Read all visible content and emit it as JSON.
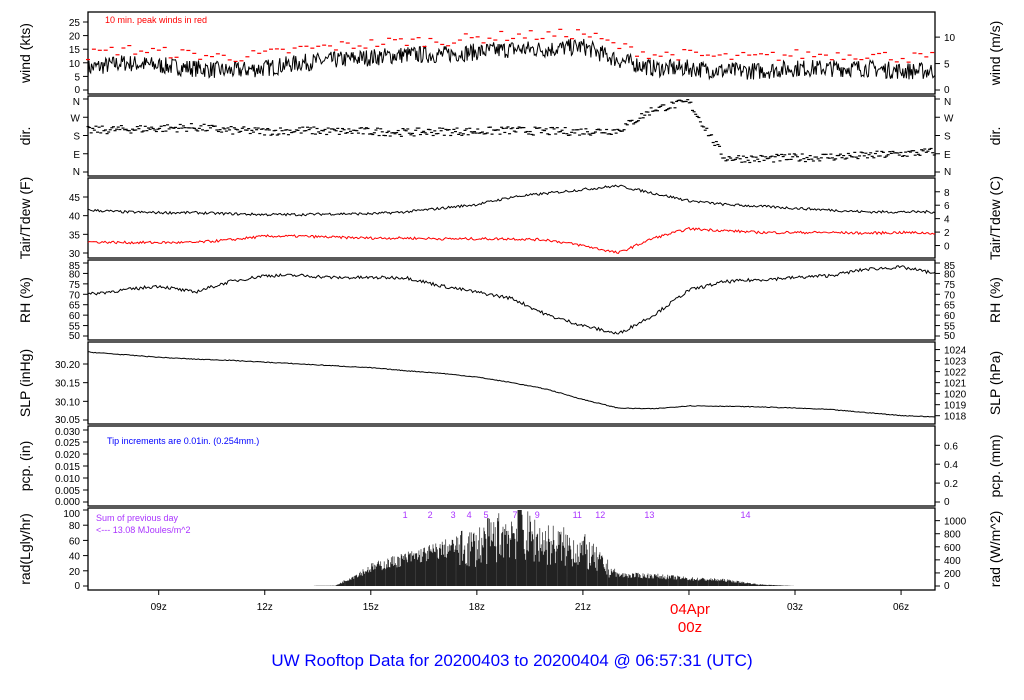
{
  "title": "UW Rooftop Data for 20200403  to  20200404 @ 06:57:31  (UTC)",
  "date_marker": {
    "day": "04Apr",
    "hour": "00z"
  },
  "colors": {
    "title": "#0000ff",
    "peak": "#ff0000",
    "dew": "#ff0000",
    "note_pcp": "#0000ff",
    "rad_labels": "#aa33ff",
    "line": "#000000"
  },
  "chart_data": {
    "type": "line",
    "x_range_hours_utc": [
      7.0,
      30.96
    ],
    "x_ticks": [
      {
        "hour": 9,
        "label": "09z"
      },
      {
        "hour": 12,
        "label": "12z"
      },
      {
        "hour": 15,
        "label": "15z"
      },
      {
        "hour": 18,
        "label": "18z"
      },
      {
        "hour": 21,
        "label": "21z"
      },
      {
        "hour": 27,
        "label": "03z"
      },
      {
        "hour": 30,
        "label": "06z"
      }
    ],
    "hourly_x": [
      7,
      8,
      9,
      10,
      11,
      12,
      13,
      14,
      15,
      16,
      17,
      18,
      19,
      20,
      21,
      22,
      23,
      24,
      25,
      26,
      27,
      28,
      29,
      30,
      31
    ],
    "panels": [
      {
        "id": "wind",
        "ylabel": "wind (kts)",
        "ylabel_right": "wind (m/s)",
        "yticks": [
          0,
          5,
          10,
          15,
          20,
          25
        ],
        "yticks_right": [
          0,
          5,
          10
        ],
        "note": "10 min. peak winds in red",
        "series": [
          {
            "name": "wind",
            "values": [
              8,
              10,
              9,
              8,
              7,
              8,
              10,
              11,
              12,
              13,
              13,
              14,
              15,
              15,
              16,
              11,
              8,
              8,
              7,
              7,
              8,
              8,
              8,
              7,
              7
            ]
          }
        ]
      },
      {
        "id": "dir",
        "ylabel": "dir.",
        "ylabel_right": "dir.",
        "yticks": [
          "N",
          "E",
          "S",
          "W",
          "N"
        ],
        "yticks_right": [
          "N",
          "E",
          "S",
          "W",
          "N"
        ],
        "series": [
          {
            "name": "direction_deg",
            "values": [
              205,
              210,
              215,
              220,
              205,
              200,
              205,
              200,
              200,
              195,
              200,
              200,
              205,
              200,
              200,
              205,
              310,
              345,
              70,
              65,
              70,
              75,
              80,
              90,
              100
            ]
          }
        ]
      },
      {
        "id": "tair",
        "ylabel": "Tair/Tdew (F)",
        "ylabel_right": "Tair/Tdew (C)",
        "yticks": [
          30,
          35,
          40,
          45
        ],
        "yticks_right": [
          0,
          2,
          4,
          6,
          8
        ],
        "series": [
          {
            "name": "Tair",
            "values": [
              41.5,
              41,
              40.8,
              40.8,
              40.5,
              40.3,
              40.3,
              40.5,
              40.5,
              41,
              42,
              43,
              45,
              46,
              47,
              48,
              46,
              44,
              43,
              42.5,
              42,
              41.5,
              41,
              41,
              41
            ]
          },
          {
            "name": "Tdew",
            "values": [
              33,
              32.8,
              32.8,
              32.8,
              33.5,
              34.5,
              34.5,
              34.2,
              34,
              34,
              33.8,
              33.8,
              33.8,
              33.5,
              32,
              30,
              34,
              36.5,
              36,
              35.5,
              35.5,
              35.5,
              35.3,
              35.5,
              35.3
            ]
          }
        ]
      },
      {
        "id": "rh",
        "ylabel": "RH (%)",
        "ylabel_right": "RH (%)",
        "yticks": [
          50,
          55,
          60,
          65,
          70,
          75,
          80,
          85
        ],
        "yticks_right": [
          50,
          55,
          60,
          65,
          70,
          75,
          80,
          85
        ],
        "series": [
          {
            "name": "RH",
            "values": [
              70,
              72,
              74,
              71,
              76,
              79,
              79,
              78,
              78,
              78,
              74,
              71,
              68,
              60,
              55,
              51,
              60,
              72,
              76,
              77,
              78,
              79,
              82,
              83,
              80
            ]
          }
        ]
      },
      {
        "id": "slp",
        "ylabel": "SLP (inHg)",
        "ylabel_right": "SLP (hPa)",
        "yticks": [
          30.05,
          30.1,
          30.15,
          30.2
        ],
        "yticks_right": [
          1018,
          1019,
          1020,
          1021,
          1022,
          1023,
          1024
        ],
        "series": [
          {
            "name": "SLP",
            "values": [
              30.232,
              30.225,
              30.218,
              30.213,
              30.21,
              30.205,
              30.2,
              30.195,
              30.19,
              30.182,
              30.175,
              30.165,
              30.15,
              30.132,
              30.105,
              30.082,
              30.08,
              30.088,
              30.087,
              30.085,
              30.082,
              30.078,
              30.07,
              30.062,
              30.058
            ]
          }
        ]
      },
      {
        "id": "pcp",
        "ylabel": "pcp. (in)",
        "ylabel_right": "pcp. (mm)",
        "yticks": [
          0.0,
          0.005,
          0.01,
          0.015,
          0.02,
          0.025,
          0.03
        ],
        "yticks_right": [
          0,
          0.2,
          0.4,
          0.6
        ],
        "note": "Tip increments are 0.01in. (0.254mm.)",
        "series": [
          {
            "name": "precip",
            "values": [
              0,
              0,
              0,
              0,
              0,
              0,
              0,
              0,
              0,
              0,
              0,
              0,
              0,
              0,
              0,
              0,
              0,
              0,
              0,
              0,
              0,
              0,
              0,
              0,
              0
            ]
          }
        ]
      },
      {
        "id": "rad",
        "ylabel": "rad(Lgly/hr)",
        "ylabel_right": "rad (W/m^2)",
        "yticks": [
          0,
          20,
          40,
          60,
          80,
          100
        ],
        "yticks_right": [
          0,
          200,
          400,
          600,
          800,
          1000
        ],
        "note_line1": "Sum of previous day",
        "note_line2": "<--- 13.08 MJoules/m^2",
        "series": [
          {
            "name": "radiation",
            "values": [
              0,
              0,
              0,
              0,
              0,
              0,
              0,
              0.5,
              25,
              38,
              50,
              62,
              85,
              65,
              55,
              15,
              14,
              10,
              8,
              2,
              0,
              0,
              0,
              0,
              0
            ]
          }
        ],
        "hour_marks": [
          {
            "label": "1",
            "hour": 15.97
          },
          {
            "label": "2",
            "hour": 16.68
          },
          {
            "label": "3",
            "hour": 17.33
          },
          {
            "label": "4",
            "hour": 17.78
          },
          {
            "label": "5",
            "hour": 18.26
          },
          {
            "label": "7",
            "hour": 19.08
          },
          {
            "label": "9",
            "hour": 19.71
          },
          {
            "label": "11",
            "hour": 20.84
          },
          {
            "label": "12",
            "hour": 21.49
          },
          {
            "label": "13",
            "hour": 22.88
          },
          {
            "label": "14",
            "hour": 25.6
          }
        ]
      }
    ]
  }
}
